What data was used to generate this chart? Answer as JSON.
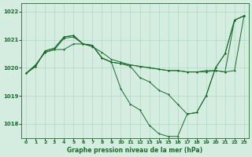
{
  "title": "Graphe pression niveau de la mer (hPa)",
  "bg_color": "#d4ede0",
  "grid_color": "#b0d8c0",
  "line_color": "#1a6b2a",
  "xlim": [
    -0.5,
    23.5
  ],
  "ylim": [
    1017.5,
    1022.3
  ],
  "yticks": [
    1018,
    1019,
    1020,
    1021,
    1022
  ],
  "xticks": [
    0,
    1,
    2,
    3,
    4,
    5,
    6,
    7,
    8,
    9,
    10,
    11,
    12,
    13,
    14,
    15,
    16,
    17,
    18,
    19,
    20,
    21,
    22,
    23
  ],
  "series": [
    {
      "y": [
        1019.8,
        1020.1,
        1020.55,
        1020.65,
        1020.65,
        1020.85,
        1020.85,
        1020.75,
        1020.55,
        1020.3,
        1020.2,
        1020.1,
        1020.05,
        1020.0,
        1019.95,
        1019.9,
        1019.9,
        1019.85,
        1019.85,
        1019.9,
        1019.9,
        1019.85,
        1019.9,
        1021.85
      ]
    },
    {
      "y": [
        1019.8,
        1020.05,
        1020.6,
        1020.7,
        1021.1,
        1021.15,
        1020.85,
        1020.8,
        1020.35,
        1020.2,
        1020.15,
        1020.05,
        1019.65,
        1019.5,
        1019.2,
        1019.05,
        1018.7,
        1018.35,
        1018.4,
        1019.0,
        1020.0,
        1020.5,
        1021.7,
        1021.85
      ]
    },
    {
      "y": [
        1019.8,
        1020.05,
        1020.6,
        1020.7,
        1021.1,
        1021.15,
        1020.85,
        1020.8,
        1020.35,
        1020.2,
        1019.25,
        1018.7,
        1018.5,
        1017.95,
        1017.65,
        1017.55,
        1017.55,
        1018.35,
        1018.4,
        1019.0,
        1020.0,
        1020.5,
        1021.7,
        1021.85
      ]
    },
    {
      "y": [
        1019.8,
        1020.1,
        1020.55,
        1020.65,
        1021.05,
        1021.1,
        1020.85,
        1020.8,
        1020.35,
        1020.2,
        1020.15,
        1020.1,
        1020.05,
        1020.0,
        1019.95,
        1019.9,
        1019.9,
        1019.85,
        1019.85,
        1019.85,
        1019.9,
        1019.85,
        1021.7,
        1021.85
      ]
    }
  ],
  "marker_indices": {
    "s0": [
      0,
      1,
      2,
      3,
      4,
      5,
      6,
      7,
      8,
      9,
      10,
      11,
      12,
      13,
      14,
      15,
      16,
      17,
      18,
      19,
      20,
      21,
      22,
      23
    ],
    "s1": [
      0,
      1,
      2,
      3,
      4,
      5,
      6,
      7,
      8,
      9,
      10,
      11,
      12,
      13,
      14,
      15,
      16,
      17,
      18,
      19,
      20,
      21,
      22,
      23
    ],
    "s2": [
      0,
      1,
      2,
      3,
      4,
      5,
      6,
      7,
      8,
      9,
      10,
      11,
      12,
      13,
      14,
      15,
      16,
      17,
      18,
      19,
      20,
      21,
      22,
      23
    ],
    "s3": [
      0,
      1,
      2,
      3,
      4,
      5,
      6,
      7,
      8,
      9,
      10,
      11,
      12,
      13,
      14,
      15,
      16,
      17,
      18,
      19,
      20,
      21,
      22,
      23
    ]
  }
}
